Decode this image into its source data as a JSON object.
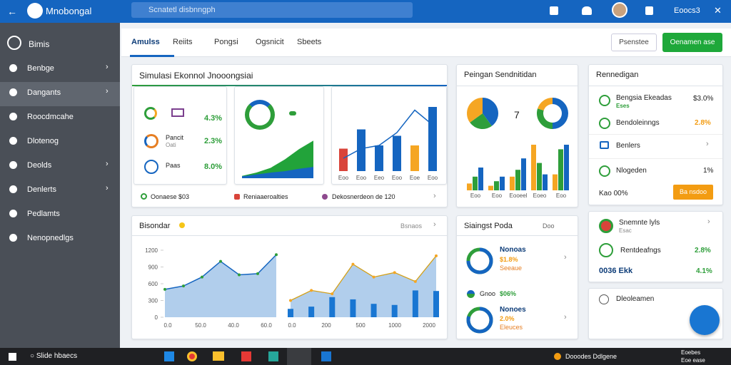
{
  "topbar": {
    "app": "Mnobongal",
    "search": "Scnatetl disbnngph",
    "user": "Eoocs3"
  },
  "sidebar": {
    "title": "Bimis",
    "items": [
      "Benbge",
      "Dangants",
      "Roocdmcahe",
      "Dlotenog",
      "Deolds",
      "Denlerts",
      "Pedlamts",
      "Nenopnedlgs"
    ]
  },
  "tabs": [
    "Amulss",
    "Reiits",
    "Pongsi",
    "Ogsnicit",
    "Sbeets"
  ],
  "buttons": [
    "Psenstee",
    "Oenamen ase"
  ],
  "sim": {
    "title": "Simulasi Ekonnol Jnooongsiai",
    "kpis": [
      {
        "value": "4.3%"
      },
      {
        "label": "Pancit",
        "sub": "Oati",
        "value": "2.3%"
      },
      {
        "label": "Paas",
        "value": "8.0%"
      }
    ],
    "area": {
      "ylim": [
        0,
        100
      ],
      "green": [
        5,
        12,
        22,
        40,
        62,
        80
      ],
      "blue": [
        4,
        8,
        12,
        15,
        20,
        24
      ]
    },
    "bars": {
      "ylim": [
        0,
        100
      ],
      "categories": [
        "Eoo",
        "Eoo",
        "Eeo",
        "Eoo",
        "Eoe",
        "Eoo"
      ],
      "values": [
        35,
        65,
        40,
        55,
        40,
        100
      ],
      "colors": [
        "#d9443a",
        "#1565c0",
        "#1565c0",
        "#1565c0",
        "#f5a623",
        "#1565c0"
      ],
      "trend": [
        20,
        35,
        40,
        60,
        95,
        72
      ]
    },
    "legend": [
      "Oonaese $03",
      "Reniaaeroalties",
      "Dekosnerdeon de 120"
    ]
  },
  "peng": {
    "title": "Peingan Sendnitidan",
    "count": "7",
    "pies": [
      [
        40,
        25,
        35
      ],
      [
        50,
        30,
        20
      ]
    ],
    "pie_colors": [
      "#1565c0",
      "#2e9e3a",
      "#f5a623"
    ],
    "bars": {
      "ylim": [
        0,
        100
      ],
      "categories": [
        "Eoo",
        "Eoo",
        "Eooeel",
        "Eoeo",
        "Eoo"
      ],
      "series": [
        {
          "color": "#f5a623",
          "values": [
            15,
            10,
            30,
            100,
            35
          ]
        },
        {
          "color": "#2e9e3a",
          "values": [
            30,
            20,
            45,
            60,
            90
          ]
        },
        {
          "color": "#1565c0",
          "values": [
            50,
            30,
            70,
            35,
            100
          ]
        }
      ]
    }
  },
  "renn": {
    "title": "Rennedigan",
    "items": [
      {
        "label": "Bengsia Ekeadas",
        "sub": "Eses",
        "value": "$3.0%"
      },
      {
        "label": "Bendoleinngs",
        "value": "2.8%"
      },
      {
        "label": "Benlers"
      },
      {
        "label": "Nlogeden",
        "value": "1%"
      }
    ],
    "foot": "Kao 00%",
    "button": "Ba nsdoo"
  },
  "bisondar": {
    "title": "Bisondar",
    "menu": "Bsnaos",
    "ylim": [
      0,
      1200
    ],
    "yticks": [
      0,
      300,
      600,
      900,
      1200
    ],
    "xlabels": [
      "0.0",
      "50.0",
      "40.0",
      "60.0",
      "0.0",
      "200",
      "500",
      "1000",
      "2000"
    ],
    "left": [
      500,
      560,
      720,
      1000,
      760,
      780,
      1120
    ],
    "right_bars": [
      150,
      190,
      360,
      320,
      240,
      220,
      480,
      470
    ],
    "right_line": [
      300,
      480,
      420,
      950,
      720,
      800,
      640,
      1100
    ]
  },
  "siaingst": {
    "title": "Siaingst Poda",
    "menu": "Doo",
    "items": [
      {
        "title": "Nonoas",
        "a": "$1.8%",
        "b": "Seeaue",
        "pct": 75
      },
      {
        "title": "Nonoes",
        "a": "2.0%",
        "b": "Eleuces",
        "pct": 80
      }
    ],
    "mid": {
      "label": "Gnoo",
      "value": "$06%"
    }
  },
  "list2": {
    "items": [
      {
        "label": "Snemnte lyls",
        "sub": "Esac"
      },
      {
        "label": "Rentdeafngs",
        "value": "2.8%"
      },
      {
        "label": "0036 Ekk",
        "value": "4.1%"
      }
    ],
    "foot": "Dleoleamen"
  },
  "taskbar": {
    "search": "Slide hbaecs",
    "tray": "Dooodes Ddlgene",
    "time": "Eoebes",
    "date": "Eoe ease"
  }
}
